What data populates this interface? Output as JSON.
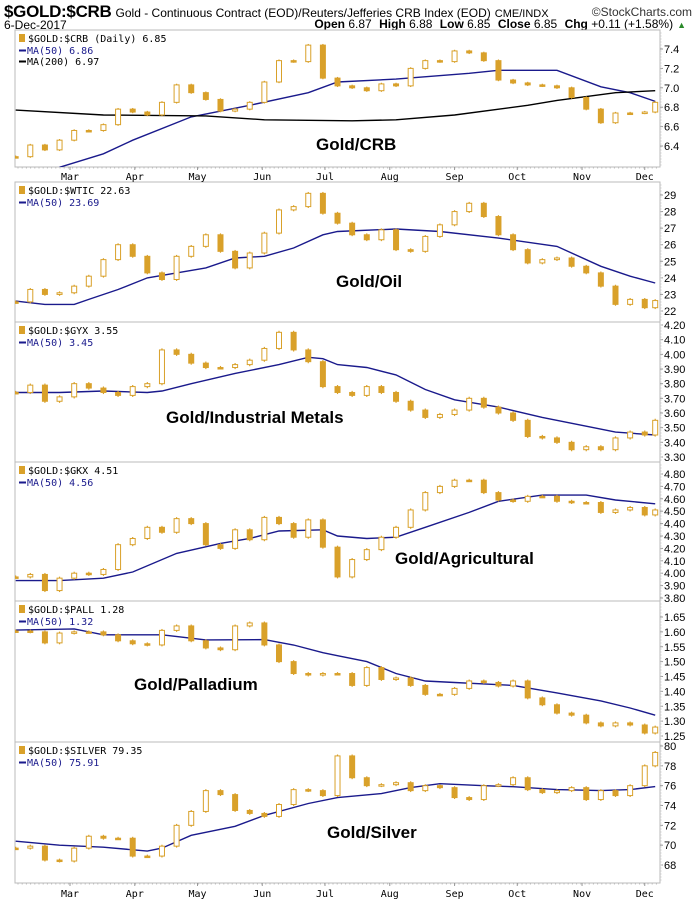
{
  "header": {
    "symbol": "$GOLD:$CRB",
    "description": "Gold - Continuous Contract (EOD)/Reuters/Jefferies CRB Index (EOD)",
    "exchange": "CME/INDX",
    "brand": "©StockCharts.com",
    "date": "6-Dec-2017",
    "open_label": "Open",
    "open": "6.87",
    "high_label": "High",
    "high": "6.88",
    "low_label": "Low",
    "low": "6.85",
    "close_label": "Close",
    "close": "6.85",
    "chg_label": "Chg",
    "chg": "+0.11 (+1.58%)",
    "chg_icon": "up-triangle-icon"
  },
  "colors": {
    "candle": "#D9A12A",
    "ma50": "#1A1A8C",
    "ma200": "#000000",
    "grid_border": "#BBBBBB"
  },
  "chart_data": {
    "type": "line",
    "style": "candlestick",
    "x": [
      "2017-02-03",
      "2017-02-10",
      "2017-02-17",
      "2017-02-24",
      "2017-03-03",
      "2017-03-10",
      "2017-03-17",
      "2017-03-24",
      "2017-03-31",
      "2017-04-07",
      "2017-04-14",
      "2017-04-21",
      "2017-04-28",
      "2017-05-05",
      "2017-05-12",
      "2017-05-19",
      "2017-05-26",
      "2017-06-02",
      "2017-06-09",
      "2017-06-16",
      "2017-06-23",
      "2017-06-30",
      "2017-07-07",
      "2017-07-14",
      "2017-07-21",
      "2017-07-28",
      "2017-08-04",
      "2017-08-11",
      "2017-08-18",
      "2017-08-25",
      "2017-09-01",
      "2017-09-08",
      "2017-09-15",
      "2017-09-22",
      "2017-09-29",
      "2017-10-06",
      "2017-10-13",
      "2017-10-20",
      "2017-10-27",
      "2017-11-03",
      "2017-11-10",
      "2017-11-17",
      "2017-11-24",
      "2017-12-01",
      "2017-12-06"
    ],
    "x_tick_labels": [
      "Mar",
      "Apr",
      "May",
      "Jun",
      "Jul",
      "Aug",
      "Sep",
      "Oct",
      "Nov",
      "Dec"
    ],
    "panels": [
      {
        "legend_price": "$GOLD:$CRB (Daily) 6.85",
        "panel_label": "Gold/CRB",
        "yticks": [
          "7.4",
          "7.2",
          "7.0",
          "6.8",
          "6.6",
          "6.4"
        ],
        "close": [
          6.29,
          6.41,
          6.36,
          6.46,
          6.56,
          6.56,
          6.62,
          6.78,
          6.75,
          6.72,
          6.85,
          7.03,
          6.95,
          6.88,
          6.76,
          6.78,
          6.85,
          7.06,
          7.28,
          7.27,
          7.44,
          7.1,
          7.02,
          7.0,
          6.97,
          7.04,
          7.02,
          7.2,
          7.28,
          7.27,
          7.38,
          7.36,
          7.28,
          7.08,
          7.05,
          7.03,
          7.02,
          7.0,
          6.9,
          6.78,
          6.64,
          6.74,
          6.74,
          6.75,
          6.85
        ],
        "ma": [
          {
            "label": "MA(50) 6.86",
            "color": "#1A1A8C",
            "points": [
              [
                "2017-02-24",
                6.18
              ],
              [
                "2017-03-17",
                6.32
              ],
              [
                "2017-03-31",
                6.46
              ],
              [
                "2017-04-28",
                6.7
              ],
              [
                "2017-05-26",
                6.82
              ],
              [
                "2017-06-23",
                6.95
              ],
              [
                "2017-07-07",
                7.06
              ],
              [
                "2017-08-04",
                7.09
              ],
              [
                "2017-09-08",
                7.15
              ],
              [
                "2017-09-22",
                7.18
              ],
              [
                "2017-10-20",
                7.18
              ],
              [
                "2017-11-10",
                7.01
              ],
              [
                "2017-11-24",
                6.95
              ],
              [
                "2017-12-06",
                6.86
              ]
            ]
          },
          {
            "label": "MA(200) 6.97",
            "color": "#000000",
            "points": [
              [
                "2017-02-03",
                6.77
              ],
              [
                "2017-03-17",
                6.72
              ],
              [
                "2017-05-05",
                6.71
              ],
              [
                "2017-06-02",
                6.67
              ],
              [
                "2017-07-14",
                6.66
              ],
              [
                "2017-08-04",
                6.67
              ],
              [
                "2017-09-01",
                6.72
              ],
              [
                "2017-10-06",
                6.82
              ],
              [
                "2017-10-20",
                6.87
              ],
              [
                "2017-11-17",
                6.95
              ],
              [
                "2017-12-06",
                6.97
              ]
            ]
          }
        ]
      },
      {
        "legend_price": "$GOLD:$WTIC 22.63",
        "panel_label": "Gold/Oil",
        "yticks": [
          "29",
          "28",
          "27",
          "26",
          "25",
          "24",
          "23",
          "22"
        ],
        "close": [
          22.55,
          23.3,
          23.0,
          23.1,
          23.5,
          24.1,
          25.1,
          26.0,
          25.3,
          24.3,
          23.9,
          25.3,
          25.9,
          26.6,
          25.6,
          24.6,
          25.5,
          26.7,
          28.1,
          28.3,
          29.1,
          27.9,
          27.3,
          26.6,
          26.3,
          26.9,
          25.7,
          25.6,
          26.5,
          27.2,
          28.0,
          28.5,
          27.7,
          26.6,
          25.7,
          24.9,
          25.1,
          25.2,
          24.7,
          24.3,
          23.5,
          22.4,
          22.7,
          22.2,
          22.63
        ],
        "ma": [
          {
            "label": "MA(50) 23.69",
            "color": "#1A1A8C",
            "points": [
              [
                "2017-02-03",
                22.6
              ],
              [
                "2017-02-17",
                22.4
              ],
              [
                "2017-03-03",
                22.4
              ],
              [
                "2017-03-10",
                22.7
              ],
              [
                "2017-03-24",
                23.3
              ],
              [
                "2017-04-07",
                24.0
              ],
              [
                "2017-05-05",
                24.6
              ],
              [
                "2017-05-19",
                25.2
              ],
              [
                "2017-06-02",
                25.3
              ],
              [
                "2017-06-16",
                25.8
              ],
              [
                "2017-06-30",
                26.6
              ],
              [
                "2017-07-07",
                26.8
              ],
              [
                "2017-08-04",
                26.95
              ],
              [
                "2017-08-25",
                26.8
              ],
              [
                "2017-09-22",
                26.4
              ],
              [
                "2017-10-20",
                25.9
              ],
              [
                "2017-11-10",
                24.7
              ],
              [
                "2017-11-24",
                24.1
              ],
              [
                "2017-12-06",
                23.69
              ]
            ]
          }
        ]
      },
      {
        "legend_price": "$GOLD:$GYX 3.55",
        "panel_label": "Gold/Industrial Metals",
        "yticks": [
          "4.20",
          "4.10",
          "4.00",
          "3.90",
          "3.80",
          "3.70",
          "3.60",
          "3.50",
          "3.40",
          "3.30"
        ],
        "close": [
          3.74,
          3.79,
          3.68,
          3.71,
          3.8,
          3.77,
          3.74,
          3.72,
          3.78,
          3.8,
          4.03,
          4.0,
          3.94,
          3.91,
          3.91,
          3.93,
          3.96,
          4.04,
          4.15,
          4.03,
          3.95,
          3.78,
          3.74,
          3.72,
          3.78,
          3.74,
          3.68,
          3.62,
          3.57,
          3.59,
          3.62,
          3.7,
          3.64,
          3.6,
          3.55,
          3.44,
          3.43,
          3.4,
          3.35,
          3.37,
          3.35,
          3.43,
          3.47,
          3.45,
          3.55
        ],
        "ma": [
          {
            "label": "MA(50) 3.45",
            "color": "#1A1A8C",
            "points": [
              [
                "2017-02-03",
                3.74
              ],
              [
                "2017-02-24",
                3.74
              ],
              [
                "2017-03-17",
                3.75
              ],
              [
                "2017-04-07",
                3.74
              ],
              [
                "2017-04-14",
                3.75
              ],
              [
                "2017-04-28",
                3.8
              ],
              [
                "2017-05-19",
                3.87
              ],
              [
                "2017-06-09",
                3.93
              ],
              [
                "2017-06-23",
                3.98
              ],
              [
                "2017-06-30",
                3.97
              ],
              [
                "2017-07-07",
                3.93
              ],
              [
                "2017-07-21",
                3.91
              ],
              [
                "2017-08-04",
                3.86
              ],
              [
                "2017-08-18",
                3.76
              ],
              [
                "2017-09-01",
                3.69
              ],
              [
                "2017-09-22",
                3.64
              ],
              [
                "2017-10-13",
                3.57
              ],
              [
                "2017-11-03",
                3.51
              ],
              [
                "2017-11-17",
                3.47
              ],
              [
                "2017-12-06",
                3.45
              ]
            ]
          }
        ]
      },
      {
        "legend_price": "$GOLD:$GKX 4.51",
        "panel_label": "Gold/Agricultural",
        "yticks": [
          "4.80",
          "4.70",
          "4.60",
          "4.50",
          "4.40",
          "4.30",
          "4.20",
          "4.10",
          "4.00",
          "3.90",
          "3.80"
        ],
        "close": [
          3.97,
          3.99,
          3.86,
          3.96,
          4.0,
          3.99,
          4.03,
          4.23,
          4.28,
          4.37,
          4.33,
          4.44,
          4.4,
          4.23,
          4.2,
          4.35,
          4.27,
          4.45,
          4.4,
          4.29,
          4.43,
          4.21,
          3.97,
          4.11,
          4.19,
          4.29,
          4.37,
          4.51,
          4.65,
          4.7,
          4.75,
          4.75,
          4.65,
          4.59,
          4.58,
          4.62,
          4.62,
          4.58,
          4.57,
          4.57,
          4.49,
          4.51,
          4.53,
          4.47,
          4.51
        ],
        "ma": [
          {
            "label": "MA(50) 4.56",
            "color": "#1A1A8C",
            "points": [
              [
                "2017-02-03",
                3.94
              ],
              [
                "2017-02-24",
                3.94
              ],
              [
                "2017-03-17",
                3.96
              ],
              [
                "2017-03-31",
                4.01
              ],
              [
                "2017-04-21",
                4.16
              ],
              [
                "2017-05-12",
                4.24
              ],
              [
                "2017-05-26",
                4.28
              ],
              [
                "2017-06-09",
                4.34
              ],
              [
                "2017-06-30",
                4.35
              ],
              [
                "2017-07-07",
                4.3
              ],
              [
                "2017-07-21",
                4.28
              ],
              [
                "2017-08-04",
                4.29
              ],
              [
                "2017-08-18",
                4.37
              ],
              [
                "2017-09-08",
                4.49
              ],
              [
                "2017-09-22",
                4.58
              ],
              [
                "2017-10-13",
                4.63
              ],
              [
                "2017-11-03",
                4.63
              ],
              [
                "2017-11-17",
                4.59
              ],
              [
                "2017-12-06",
                4.56
              ]
            ]
          }
        ]
      },
      {
        "legend_price": "$GOLD:$PALL 1.28",
        "panel_label": "Gold/Palladium",
        "yticks": [
          "1.65",
          "1.60",
          "1.55",
          "1.50",
          "1.45",
          "1.40",
          "1.35",
          "1.30",
          "1.25"
        ],
        "close": [
          1.603,
          1.6,
          1.563,
          1.596,
          1.6,
          1.6,
          1.59,
          1.57,
          1.56,
          1.556,
          1.605,
          1.62,
          1.57,
          1.546,
          1.54,
          1.62,
          1.63,
          1.556,
          1.5,
          1.46,
          1.455,
          1.46,
          1.46,
          1.42,
          1.48,
          1.44,
          1.445,
          1.42,
          1.39,
          1.39,
          1.41,
          1.435,
          1.43,
          1.418,
          1.435,
          1.378,
          1.355,
          1.327,
          1.32,
          1.294,
          1.284,
          1.294,
          1.287,
          1.26,
          1.28
        ],
        "ma": [
          {
            "label": "MA(50) 1.32",
            "color": "#1A1A8C",
            "points": [
              [
                "2017-02-03",
                1.606
              ],
              [
                "2017-03-03",
                1.61
              ],
              [
                "2017-03-17",
                1.59
              ],
              [
                "2017-04-14",
                1.59
              ],
              [
                "2017-05-05",
                1.573
              ],
              [
                "2017-06-02",
                1.574
              ],
              [
                "2017-06-16",
                1.556
              ],
              [
                "2017-06-30",
                1.53
              ],
              [
                "2017-07-07",
                1.52
              ],
              [
                "2017-07-21",
                1.5
              ],
              [
                "2017-08-04",
                1.46
              ],
              [
                "2017-08-18",
                1.435
              ],
              [
                "2017-09-01",
                1.43
              ],
              [
                "2017-09-15",
                1.425
              ],
              [
                "2017-09-29",
                1.42
              ],
              [
                "2017-10-20",
                1.395
              ],
              [
                "2017-11-10",
                1.368
              ],
              [
                "2017-11-24",
                1.344
              ],
              [
                "2017-12-06",
                1.32
              ]
            ]
          }
        ]
      },
      {
        "legend_price": "$GOLD:$SILVER 79.35",
        "panel_label": "Gold/Silver",
        "yticks": [
          "80",
          "78",
          "76",
          "74",
          "72",
          "70",
          "68"
        ],
        "close": [
          69.7,
          69.9,
          68.5,
          68.4,
          69.7,
          70.9,
          70.7,
          70.7,
          68.9,
          68.9,
          69.9,
          72.0,
          73.4,
          75.5,
          75.1,
          73.5,
          73.2,
          72.9,
          74.1,
          75.6,
          75.5,
          75.0,
          79.0,
          76.8,
          76.0,
          76.1,
          76.3,
          75.5,
          76.0,
          75.8,
          74.8,
          74.6,
          76.0,
          76.1,
          76.8,
          75.6,
          75.3,
          75.5,
          75.8,
          74.6,
          75.5,
          75.0,
          76.0,
          78.0,
          79.35
        ],
        "ma": [
          {
            "label": "MA(50) 75.91",
            "color": "#1A1A8C",
            "points": [
              [
                "2017-02-03",
                70.4
              ],
              [
                "2017-02-24",
                70.0
              ],
              [
                "2017-03-17",
                69.8
              ],
              [
                "2017-04-07",
                69.4
              ],
              [
                "2017-04-14",
                69.7
              ],
              [
                "2017-04-28",
                71.0
              ],
              [
                "2017-05-19",
                71.9
              ],
              [
                "2017-06-02",
                73.0
              ],
              [
                "2017-06-23",
                74.2
              ],
              [
                "2017-07-07",
                74.8
              ],
              [
                "2017-07-28",
                75.2
              ],
              [
                "2017-08-11",
                75.8
              ],
              [
                "2017-08-25",
                76.2
              ],
              [
                "2017-09-15",
                76.0
              ],
              [
                "2017-09-29",
                75.9
              ],
              [
                "2017-10-20",
                75.6
              ],
              [
                "2017-11-10",
                75.5
              ],
              [
                "2017-11-24",
                75.6
              ],
              [
                "2017-12-06",
                75.91
              ]
            ]
          }
        ]
      }
    ]
  }
}
